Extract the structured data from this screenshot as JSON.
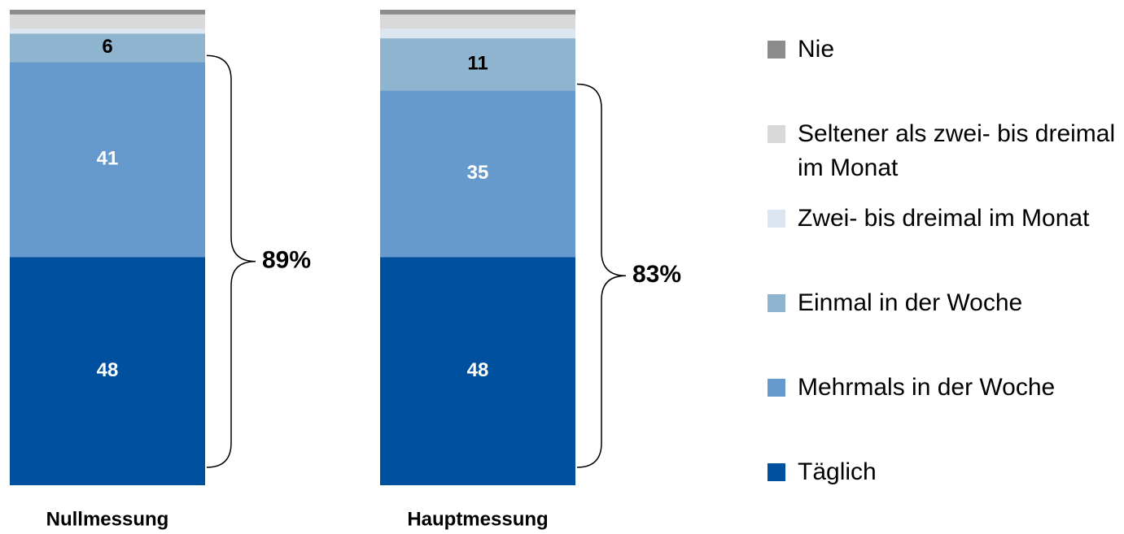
{
  "chart_data": {
    "type": "stacked_bar",
    "categories": [
      "Nullmessung",
      "Hauptmessung"
    ],
    "series": [
      {
        "name": "Täglich",
        "color": "#0050a0",
        "label_color": "#ffffff",
        "values": [
          48,
          48
        ]
      },
      {
        "name": "Mehrmals in der Woche",
        "color": "#6699cc",
        "label_color": "#ffffff",
        "values": [
          41,
          35
        ]
      },
      {
        "name": "Einmal in der Woche",
        "color": "#8fb4cf",
        "label_color": "#000000",
        "values": [
          6,
          11
        ]
      },
      {
        "name": "Zwei- bis dreimal im Monat",
        "color": "#dce6f0",
        "label_color": "#000000",
        "values": [
          1,
          2
        ]
      },
      {
        "name": "Seltener als zwei- bis dreimal im Monat",
        "color": "#d9d9d9",
        "label_color": "#000000",
        "values": [
          3,
          3
        ]
      },
      {
        "name": "Nie",
        "color": "#8c8c8c",
        "label_color": "#000000",
        "values": [
          1,
          1
        ]
      }
    ],
    "ylim": [
      0,
      100
    ],
    "annotations": [
      "89%",
      "83%"
    ]
  }
}
